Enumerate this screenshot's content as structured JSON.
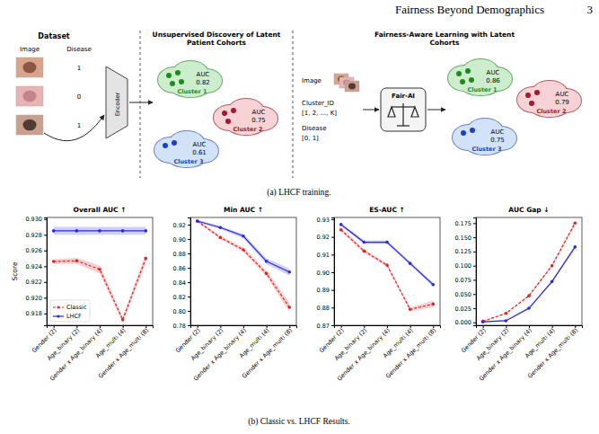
{
  "header": {
    "title": "Fairness Beyond Demographics",
    "page": 3
  },
  "figure_a": {
    "caption": "(a) LHCF training.",
    "dataset": {
      "title": "Dataset",
      "columns": [
        "Image",
        "Disease"
      ],
      "disease": [
        1,
        0,
        1
      ]
    },
    "encoder": "Encoder",
    "discovery": {
      "title": "Unsupervised Discovery of Latent Patient Cohorts",
      "clusters": [
        {
          "name": "Cluster 1",
          "metric": "AUC",
          "auc": 0.82
        },
        {
          "name": "Cluster 2",
          "metric": "AUC",
          "auc": 0.75
        },
        {
          "name": "Cluster 3",
          "metric": "AUC",
          "auc": 0.61
        }
      ]
    },
    "fair_learning": {
      "title": "Fairness-Aware Learning with Latent Cohorts",
      "inputs": [
        "Image",
        "Cluster_ID",
        "[1, 2, ..., K]",
        "Disease",
        "[0, 1]"
      ],
      "model": "Fair-AI",
      "clusters": [
        {
          "name": "Cluster 1",
          "metric": "AUC",
          "auc": 0.86
        },
        {
          "name": "Cluster 2",
          "metric": "AUC",
          "auc": 0.79
        },
        {
          "name": "Cluster 3",
          "metric": "AUC",
          "auc": 0.75
        }
      ]
    }
  },
  "figure_b": {
    "caption": "(b) Classic vs. LHCF Results."
  },
  "chart_data": [
    {
      "type": "line",
      "title": "Overall AUC ↑",
      "y_label": "Score",
      "grid": false,
      "legend": "lower left",
      "categories": [
        "Gender (2)",
        "Age_binary (2)",
        "Gender x Age_binary (4)",
        "Age_multi (4)",
        "Gender x Age_multi (8)"
      ],
      "ylim": [
        0.9165,
        0.9302
      ],
      "yticks": [
        0.918,
        {
          "value": 0.92,
          "label": "0.920"
        },
        0.922,
        0.924,
        0.926,
        0.928,
        {
          "value": 0.93,
          "label": "0.930"
        }
      ],
      "series": [
        {
          "name": "Classic",
          "color": "#e02424",
          "marker": "circle",
          "line_style": "dashed",
          "values": [
            0.9246,
            0.9247,
            0.9236,
            0.9172,
            0.925
          ],
          "errors": [
            0.0003,
            0.0004,
            0.0005,
            0.0004,
            0.0006
          ]
        },
        {
          "name": "LHCF",
          "color": "#2a2ad6",
          "marker": "circle",
          "line_style": "solid",
          "values": [
            0.9285,
            0.9285,
            0.9285,
            0.9285,
            0.9285
          ],
          "errors": [
            0.0005,
            0.0005,
            0.0005,
            0.0005,
            0.0005
          ]
        }
      ]
    },
    {
      "type": "line",
      "title": "Min AUC ↑",
      "grid": false,
      "categories": [
        "Gender (2)",
        "Age_binary (2)",
        "Gender x Age_binary (4)",
        "Age_multi (4)",
        "Gender x Age_multi (8)"
      ],
      "ylim": [
        0.78,
        0.93
      ],
      "yticks": [
        0.78,
        {
          "value": 0.8,
          "label": "0.80"
        },
        0.82,
        0.84,
        0.86,
        0.88,
        {
          "value": 0.9,
          "label": "0.90"
        },
        0.92
      ],
      "series": [
        {
          "name": "Classic",
          "color": "#e02424",
          "marker": "circle",
          "line_style": "dashed",
          "values": [
            0.925,
            0.902,
            0.885,
            0.852,
            0.805
          ],
          "errors": [
            0.002,
            0.002,
            0.003,
            0.004,
            0.007
          ]
        },
        {
          "name": "LHCF",
          "color": "#2a2ad6",
          "marker": "circle",
          "line_style": "solid",
          "values": [
            0.925,
            0.916,
            0.904,
            0.869,
            0.854
          ],
          "errors": [
            0.002,
            0.002,
            0.003,
            0.004,
            0.005
          ]
        }
      ]
    },
    {
      "type": "line",
      "title": "ES-AUC ↑",
      "grid": false,
      "categories": [
        "Gender (2)",
        "Age_binary (2)",
        "Gender x Age_binary (4)",
        "Age_multi (4)",
        "Gender x Age_multi (8)"
      ],
      "ylim": [
        0.87,
        0.931
      ],
      "yticks": [
        0.87,
        0.88,
        0.89,
        {
          "value": 0.9,
          "label": "0.90"
        },
        0.91,
        0.92,
        0.93
      ],
      "series": [
        {
          "name": "Classic",
          "color": "#e02424",
          "marker": "circle",
          "line_style": "dashed",
          "values": [
            0.924,
            0.912,
            0.904,
            0.879,
            0.882
          ],
          "errors": [
            0.001,
            0.001,
            0.001,
            0.001,
            0.002
          ]
        },
        {
          "name": "LHCF",
          "color": "#2a2ad6",
          "marker": "circle",
          "line_style": "solid",
          "values": [
            0.927,
            0.917,
            0.917,
            0.905,
            0.893
          ],
          "errors": [
            0.001,
            0.001,
            0.001,
            0.001,
            0.001
          ]
        }
      ]
    },
    {
      "type": "line",
      "title": "AUC Gap ↓",
      "grid": false,
      "categories": [
        "Gender (2)",
        "Age_binary (2)",
        "Gender x Age_binary (4)",
        "Age_multi (4)",
        "Gender x Age_multi (8)"
      ],
      "ylim": [
        -0.005,
        0.185
      ],
      "yticks": [
        {
          "value": 0,
          "label": "0.000"
        },
        0.025,
        {
          "value": 0.05,
          "label": "0.050"
        },
        0.075,
        {
          "value": 0.1,
          "label": "0.100"
        },
        0.125,
        {
          "value": 0.15,
          "label": "0.150"
        },
        0.175
      ],
      "series": [
        {
          "name": "Classic",
          "color": "#e02424",
          "marker": "circle",
          "line_style": "dashed",
          "values": [
            0.002,
            0.016,
            0.047,
            0.1,
            0.175
          ],
          "errors": [
            0.001,
            0.001,
            0.002,
            0.003,
            0.004
          ]
        },
        {
          "name": "LHCF",
          "color": "#2a2ad6",
          "marker": "circle",
          "line_style": "solid",
          "values": [
            0.001,
            0.003,
            0.025,
            0.072,
            0.133
          ],
          "errors": [
            0.001,
            0.001,
            0.002,
            0.002,
            0.003
          ]
        }
      ]
    }
  ]
}
